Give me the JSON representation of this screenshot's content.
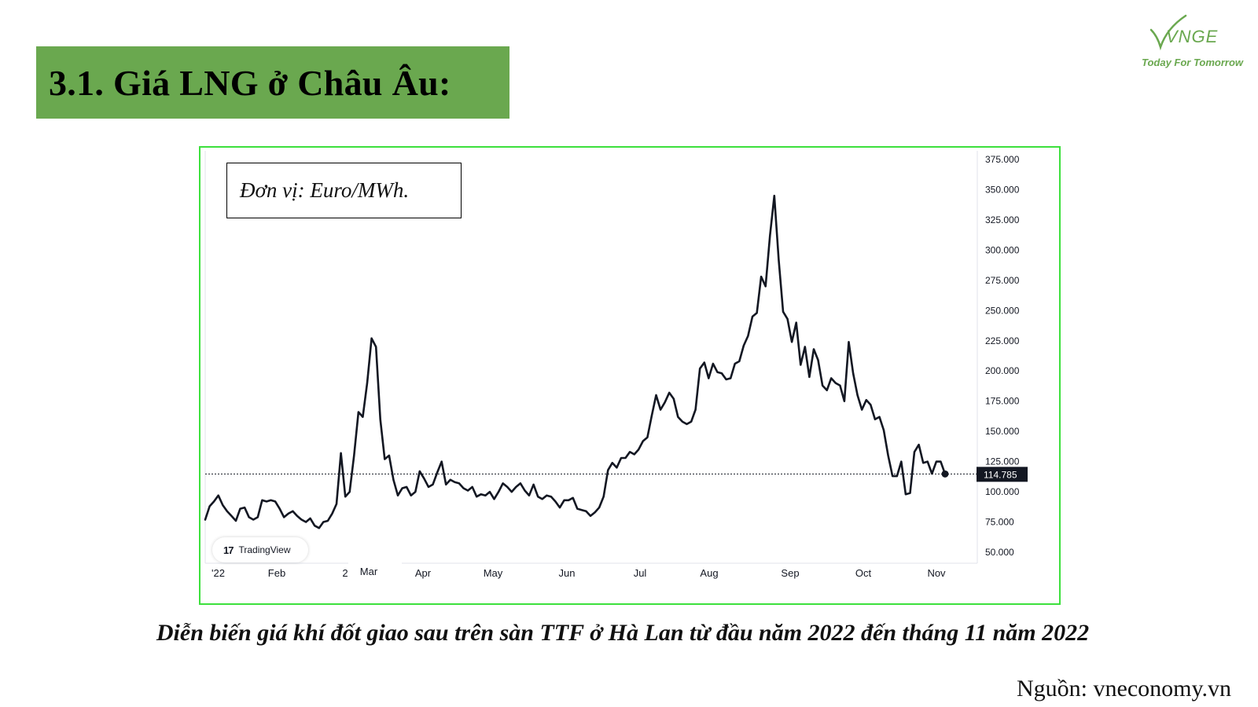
{
  "title": "3.1. Giá LNG ở Châu Âu:",
  "logo": {
    "mark": "VNGE",
    "tagline": "Today For Tomorrow",
    "color": "#6aa84f"
  },
  "unit_label": "Đơn vị: Euro/MWh.",
  "watermark": "TradingView",
  "caption": "Diễn biến giá khí đốt giao sau trên sàn TTF ở Hà Lan từ đầu năm 2022 đến tháng 11 năm 2022",
  "source": "Nguồn: vneconomy.vn",
  "colors": {
    "title_bg": "#6aa84f",
    "frame": "#3de03d",
    "line": "#131722",
    "price_tag_bg": "#131722"
  },
  "chart_data": {
    "type": "line",
    "ylim": [
      40,
      380
    ],
    "y_ticks": [
      "375.000",
      "350.000",
      "325.000",
      "300.000",
      "275.000",
      "250.000",
      "225.000",
      "200.000",
      "175.000",
      "150.000",
      "125.000",
      "100.000",
      "75.000",
      "50.000"
    ],
    "x_ticks": [
      "'22",
      "Feb",
      "2",
      "Mar",
      "Apr",
      "May",
      "Jun",
      "Jul",
      "Aug",
      "Sep",
      "Oct",
      "Nov"
    ],
    "last_price": 114.785,
    "last_price_label": "114.785",
    "grid": false,
    "series": [
      {
        "values": [
          77,
          88,
          92,
          97,
          89,
          84,
          80,
          76,
          86,
          87,
          79,
          77,
          79,
          93,
          92,
          93,
          92,
          86,
          79,
          82,
          84,
          80,
          77,
          75,
          78,
          72,
          70,
          75,
          76,
          82,
          90,
          132,
          96,
          100,
          130,
          166,
          162,
          190,
          227,
          220,
          160,
          127,
          130,
          110,
          97,
          103,
          104,
          97,
          100,
          117,
          111,
          104,
          106,
          116,
          125,
          106,
          110,
          108,
          107,
          103,
          101,
          104,
          96,
          98,
          97,
          100,
          94,
          100,
          107,
          104,
          100,
          104,
          107,
          101,
          97,
          106,
          96,
          94,
          97,
          96,
          92,
          87,
          93,
          93,
          95,
          86,
          85,
          84,
          80,
          83,
          87,
          96,
          118,
          124,
          120,
          128,
          128,
          133,
          131,
          135,
          142,
          145,
          163,
          180,
          168,
          174,
          182,
          177,
          162,
          158,
          156,
          158,
          168,
          202,
          207,
          194,
          206,
          199,
          198,
          193,
          194,
          206,
          208,
          221,
          229,
          245,
          248,
          278,
          270,
          312,
          345,
          292,
          249,
          243,
          224,
          240,
          205,
          220,
          195,
          218,
          209,
          188,
          184,
          194,
          190,
          188,
          175,
          224,
          198,
          180,
          168,
          176,
          172,
          160,
          162,
          151,
          130,
          113,
          113,
          125,
          98,
          99,
          133,
          139,
          124,
          125,
          115,
          125,
          125,
          114.785
        ]
      }
    ]
  }
}
